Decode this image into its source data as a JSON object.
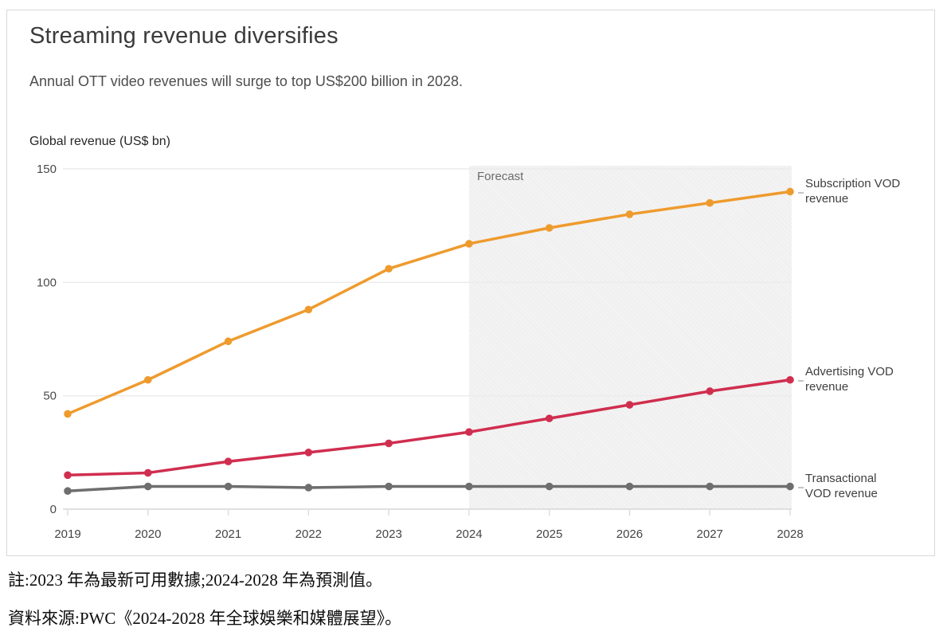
{
  "card": {
    "title": "Streaming revenue diversifies",
    "subtitle": "Annual OTT video revenues will surge to top US$200 billion in 2028.",
    "axis_title": "Global revenue (US$ bn)"
  },
  "chart_data": {
    "type": "line",
    "x": [
      2019,
      2020,
      2021,
      2022,
      2023,
      2024,
      2025,
      2026,
      2027,
      2028
    ],
    "series": [
      {
        "name": "Subscription VOD revenue",
        "color": "#EE9B2E",
        "values": [
          42,
          57,
          74,
          88,
          106,
          117,
          124,
          130,
          135,
          140
        ]
      },
      {
        "name": "Advertising VOD revenue",
        "color": "#D02E4F",
        "values": [
          15,
          16,
          21,
          25,
          29,
          34,
          40,
          46,
          52,
          57
        ]
      },
      {
        "name": "Transactional VOD revenue",
        "color": "#6E6E6E",
        "values": [
          8,
          10,
          10,
          9.5,
          10,
          10,
          10,
          10,
          10,
          10
        ]
      }
    ],
    "title": "Streaming revenue diversifies",
    "xlabel": "",
    "ylabel": "Global revenue (US$ bn)",
    "ylim": [
      0,
      150
    ],
    "yticks": [
      0,
      50,
      100,
      150
    ],
    "grid": "horizontal",
    "legend_position": "right-of-lines",
    "forecast_label": "Forecast",
    "forecast_start_x": 2024
  },
  "footnotes": {
    "note": "註:2023 年為最新可用數據;2024-2028 年為預測值。",
    "source": "資料來源:PWC《2024-2028 年全球娛樂和媒體展望》。"
  }
}
